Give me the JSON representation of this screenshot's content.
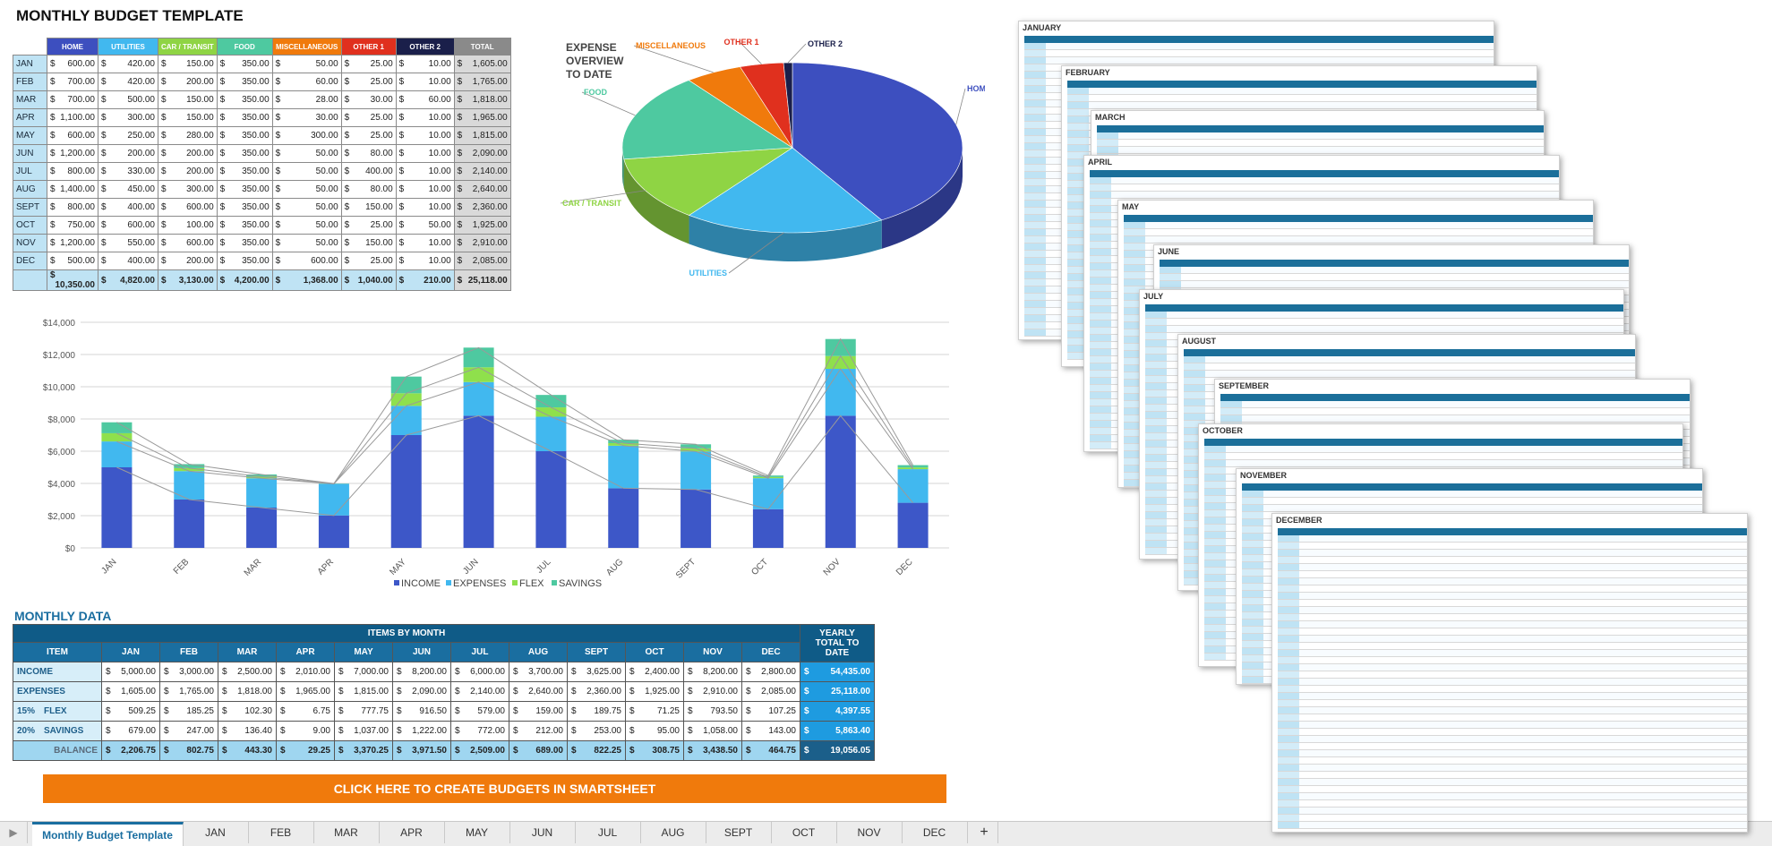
{
  "title": "MONTHLY BUDGET TEMPLATE",
  "budget": {
    "headers": [
      "HOME",
      "UTILITIES",
      "CAR / TRANSIT",
      "FOOD",
      "MISCELLANEOUS",
      "OTHER 1",
      "OTHER 2",
      "TOTAL"
    ],
    "header_colors": [
      "#3d4fbf",
      "#41b8ef",
      "#8fd444",
      "#4ec9a0",
      "#f07a0c",
      "#e0301e",
      "#1a1f4a",
      "#8a8a8a"
    ],
    "rows": [
      {
        "month": "JAN",
        "vals": [
          "600.00",
          "420.00",
          "150.00",
          "350.00",
          "50.00",
          "25.00",
          "10.00",
          "1,605.00"
        ]
      },
      {
        "month": "FEB",
        "vals": [
          "700.00",
          "420.00",
          "200.00",
          "350.00",
          "60.00",
          "25.00",
          "10.00",
          "1,765.00"
        ]
      },
      {
        "month": "MAR",
        "vals": [
          "700.00",
          "500.00",
          "150.00",
          "350.00",
          "28.00",
          "30.00",
          "60.00",
          "1,818.00"
        ]
      },
      {
        "month": "APR",
        "vals": [
          "1,100.00",
          "300.00",
          "150.00",
          "350.00",
          "30.00",
          "25.00",
          "10.00",
          "1,965.00"
        ]
      },
      {
        "month": "MAY",
        "vals": [
          "600.00",
          "250.00",
          "280.00",
          "350.00",
          "300.00",
          "25.00",
          "10.00",
          "1,815.00"
        ]
      },
      {
        "month": "JUN",
        "vals": [
          "1,200.00",
          "200.00",
          "200.00",
          "350.00",
          "50.00",
          "80.00",
          "10.00",
          "2,090.00"
        ]
      },
      {
        "month": "JUL",
        "vals": [
          "800.00",
          "330.00",
          "200.00",
          "350.00",
          "50.00",
          "400.00",
          "10.00",
          "2,140.00"
        ]
      },
      {
        "month": "AUG",
        "vals": [
          "1,400.00",
          "450.00",
          "300.00",
          "350.00",
          "50.00",
          "80.00",
          "10.00",
          "2,640.00"
        ]
      },
      {
        "month": "SEPT",
        "vals": [
          "800.00",
          "400.00",
          "600.00",
          "350.00",
          "50.00",
          "150.00",
          "10.00",
          "2,360.00"
        ]
      },
      {
        "month": "OCT",
        "vals": [
          "750.00",
          "600.00",
          "100.00",
          "350.00",
          "50.00",
          "25.00",
          "50.00",
          "1,925.00"
        ]
      },
      {
        "month": "NOV",
        "vals": [
          "1,200.00",
          "550.00",
          "600.00",
          "350.00",
          "50.00",
          "150.00",
          "10.00",
          "2,910.00"
        ]
      },
      {
        "month": "DEC",
        "vals": [
          "500.00",
          "400.00",
          "200.00",
          "350.00",
          "600.00",
          "25.00",
          "10.00",
          "2,085.00"
        ]
      }
    ],
    "totals": [
      "10,350.00",
      "4,820.00",
      "3,130.00",
      "4,200.00",
      "1,368.00",
      "1,040.00",
      "210.00",
      "25,118.00"
    ],
    "currency": "$"
  },
  "pie": {
    "title_lines": [
      "EXPENSE",
      "OVERVIEW",
      "TO DATE"
    ],
    "labels": {
      "home": "HOME",
      "utilities": "UTILITIES",
      "car": "CAR / TRANSIT",
      "food": "FOOD",
      "misc": "MISCELLANEOUS",
      "other1": "OTHER 1",
      "other2": "OTHER 2"
    },
    "values": [
      10350,
      4820,
      3130,
      4200,
      1368,
      1040,
      210
    ],
    "colors": [
      "#3d4fbf",
      "#41b8ef",
      "#8fd444",
      "#4ec9a0",
      "#f07a0c",
      "#e0301e",
      "#1a1f4a"
    ]
  },
  "chart_data": {
    "type": "bar",
    "stacked": true,
    "categories": [
      "JAN",
      "FEB",
      "MAR",
      "APR",
      "MAY",
      "JUN",
      "JUL",
      "AUG",
      "SEPT",
      "OCT",
      "NOV",
      "DEC"
    ],
    "series": [
      {
        "name": "INCOME",
        "color": "#3d57c8",
        "values": [
          5000,
          3000,
          2500,
          2010,
          7000,
          8200,
          6000,
          3700,
          3625,
          2400,
          8200,
          2800
        ]
      },
      {
        "name": "EXPENSES",
        "color": "#41b8ef",
        "values": [
          1605,
          1765,
          1818,
          1965,
          1815,
          2090,
          2140,
          2640,
          2360,
          1925,
          2910,
          2085
        ]
      },
      {
        "name": "FLEX",
        "color": "#8fe04c",
        "values": [
          509.25,
          185.25,
          102.3,
          6.75,
          777.75,
          916.5,
          579,
          159,
          189.75,
          71.25,
          793.5,
          107.25
        ]
      },
      {
        "name": "SAVINGS",
        "color": "#4ec9a0",
        "values": [
          679,
          247,
          136.4,
          9,
          1037,
          1222,
          772,
          212,
          253,
          95,
          1058,
          143
        ]
      }
    ],
    "yticks": [
      "$0",
      "$2,000",
      "$4,000",
      "$6,000",
      "$8,000",
      "$10,000",
      "$12,000",
      "$14,000"
    ],
    "ylim": [
      0,
      14000
    ],
    "grid": true,
    "legend": "bottom"
  },
  "monthly": {
    "heading": "MONTHLY DATA",
    "items_by_month": "ITEMS BY MONTH",
    "item_header": "ITEM",
    "yearly_header": "YEARLY TOTAL TO DATE",
    "months": [
      "JAN",
      "FEB",
      "MAR",
      "APR",
      "MAY",
      "JUN",
      "JUL",
      "AUG",
      "SEPT",
      "OCT",
      "NOV",
      "DEC"
    ],
    "rows": [
      {
        "pct": "",
        "label": "INCOME",
        "vals": [
          "5,000.00",
          "3,000.00",
          "2,500.00",
          "2,010.00",
          "7,000.00",
          "8,200.00",
          "6,000.00",
          "3,700.00",
          "3,625.00",
          "2,400.00",
          "8,200.00",
          "2,800.00"
        ],
        "yearly": "54,435.00"
      },
      {
        "pct": "",
        "label": "EXPENSES",
        "vals": [
          "1,605.00",
          "1,765.00",
          "1,818.00",
          "1,965.00",
          "1,815.00",
          "2,090.00",
          "2,140.00",
          "2,640.00",
          "2,360.00",
          "1,925.00",
          "2,910.00",
          "2,085.00"
        ],
        "yearly": "25,118.00"
      },
      {
        "pct": "15%",
        "label": "FLEX",
        "vals": [
          "509.25",
          "185.25",
          "102.30",
          "6.75",
          "777.75",
          "916.50",
          "579.00",
          "159.00",
          "189.75",
          "71.25",
          "793.50",
          "107.25"
        ],
        "yearly": "4,397.55"
      },
      {
        "pct": "20%",
        "label": "SAVINGS",
        "vals": [
          "679.00",
          "247.00",
          "136.40",
          "9.00",
          "1,037.00",
          "1,222.00",
          "772.00",
          "212.00",
          "253.00",
          "95.00",
          "1,058.00",
          "143.00"
        ],
        "yearly": "5,863.40"
      }
    ],
    "balance": {
      "label": "BALANCE",
      "vals": [
        "2,206.75",
        "802.75",
        "443.30",
        "29.25",
        "3,370.25",
        "3,971.50",
        "2,509.00",
        "689.00",
        "822.25",
        "308.75",
        "3,438.50",
        "464.75"
      ],
      "yearly": "19,056.05"
    }
  },
  "cta": "CLICK HERE TO CREATE BUDGETS IN SMARTSHEET",
  "sheets": [
    "JANUARY",
    "FEBRUARY",
    "MARCH",
    "APRIL",
    "MAY",
    "JUNE",
    "JULY",
    "AUGUST",
    "SEPTEMBER",
    "OCTOBER",
    "NOVEMBER",
    "DECEMBER"
  ],
  "tabs": [
    "Monthly Budget Template",
    "JAN",
    "FEB",
    "MAR",
    "APR",
    "MAY",
    "JUN",
    "JUL",
    "AUG",
    "SEPT",
    "OCT",
    "NOV",
    "DEC"
  ],
  "add_tab": "+"
}
